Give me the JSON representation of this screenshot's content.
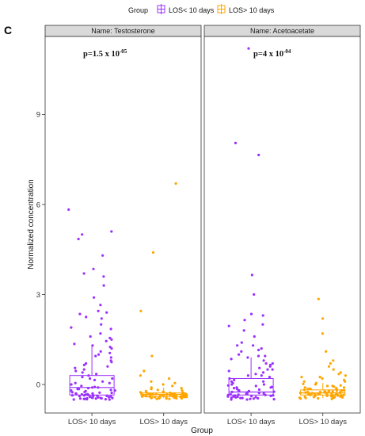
{
  "panel_label": "C",
  "legend": {
    "title": "Group",
    "entries": [
      "LOS< 10 days",
      "LOS> 10 days"
    ]
  },
  "colors": {
    "los_lt_10": "#9b30ff",
    "los_gt_10": "#ffa500",
    "strip_bg": "#d9d9d9"
  },
  "chart_data": {
    "type": "box-jitter",
    "xlabel": "Group",
    "ylabel": "Normalized concentration",
    "ylim": [
      -0.95,
      11.6
    ],
    "yticks": [
      0,
      3,
      6,
      9
    ],
    "categories": [
      "LOS< 10 days",
      "LOS> 10 days"
    ],
    "facets": [
      {
        "name": "Name: Testosterone",
        "pvalue_base": "p=1.5 x 10",
        "pvalue_exp": "-05",
        "boxes": [
          {
            "group": "LOS< 10 days",
            "min": -0.4,
            "q1": -0.35,
            "median": -0.1,
            "q3": 0.3,
            "max": 1.3
          },
          {
            "group": "LOS> 10 days",
            "min": -0.45,
            "q1": -0.4,
            "median": -0.33,
            "q3": -0.28,
            "max": -0.1
          }
        ],
        "points": [
          {
            "group": "LOS< 10 days",
            "values": [
              5.83,
              5.1,
              5.0,
              4.85,
              4.3,
              3.85,
              3.7,
              3.6,
              3.3,
              2.9,
              2.65,
              2.45,
              2.4,
              2.35,
              2.25,
              2.2,
              2.0,
              1.9,
              1.7,
              1.6,
              1.5,
              1.45,
              1.35,
              1.3,
              1.2,
              1.1,
              1.0,
              0.95,
              0.9,
              0.8,
              0.7,
              0.65,
              0.6,
              0.5,
              0.45,
              0.4,
              0.3,
              0.25,
              0.2,
              0.15,
              0.1,
              0.05,
              0.0,
              -0.05,
              -0.08,
              -0.1,
              -0.12,
              -0.15,
              -0.18,
              -0.2,
              -0.22,
              -0.25,
              -0.27,
              -0.28,
              -0.3,
              -0.31,
              -0.32,
              -0.33,
              -0.34,
              -0.35,
              -0.36,
              -0.37,
              -0.38,
              -0.39,
              -0.4,
              -0.41,
              -0.42,
              -0.42,
              -0.43,
              -0.44,
              -0.44,
              -0.45,
              -0.45,
              -0.46,
              -0.46,
              -0.47,
              -0.47,
              -0.48,
              -0.48,
              -0.49,
              -0.49,
              -0.5,
              -0.5,
              -0.38,
              -0.36,
              -0.34,
              -0.3,
              -0.26,
              -0.2,
              -0.15,
              -0.1,
              0.05,
              0.2,
              0.35,
              0.55,
              0.75,
              1.05,
              1.25,
              1.55,
              1.85
            ]
          },
          {
            "group": "LOS> 10 days",
            "values": [
              6.7,
              4.4,
              2.45,
              0.95,
              0.45,
              0.3,
              0.2,
              0.1,
              0.05,
              0.0,
              -0.05,
              -0.1,
              -0.12,
              -0.15,
              -0.18,
              -0.2,
              -0.22,
              -0.24,
              -0.26,
              -0.27,
              -0.28,
              -0.29,
              -0.3,
              -0.3,
              -0.31,
              -0.31,
              -0.32,
              -0.32,
              -0.33,
              -0.33,
              -0.34,
              -0.34,
              -0.35,
              -0.35,
              -0.36,
              -0.36,
              -0.37,
              -0.37,
              -0.38,
              -0.38,
              -0.39,
              -0.39,
              -0.4,
              -0.4,
              -0.4,
              -0.41,
              -0.41,
              -0.42,
              -0.42,
              -0.43,
              -0.43,
              -0.44,
              -0.44,
              -0.45,
              -0.45,
              -0.46,
              -0.46,
              -0.47,
              -0.48,
              -0.48,
              -0.3,
              -0.32,
              -0.35,
              -0.37,
              -0.4,
              -0.42,
              -0.38,
              -0.34,
              -0.36,
              -0.39,
              -0.41,
              -0.33,
              -0.29,
              -0.27,
              -0.25,
              -0.44,
              -0.46,
              -0.38,
              -0.35,
              -0.31
            ]
          }
        ]
      },
      {
        "name": "Name: Acetoacetate",
        "pvalue_base": "p=4 x 10",
        "pvalue_exp": "-04",
        "boxes": [
          {
            "group": "LOS< 10 days",
            "min": -0.4,
            "q1": -0.35,
            "median": -0.25,
            "q3": 0.2,
            "max": 0.9
          },
          {
            "group": "LOS> 10 days",
            "min": -0.45,
            "q1": -0.35,
            "median": -0.28,
            "q3": -0.18,
            "max": 0.05
          }
        ],
        "points": [
          {
            "group": "LOS< 10 days",
            "values": [
              11.2,
              8.05,
              7.65,
              3.65,
              3.0,
              2.35,
              2.3,
              2.15,
              2.0,
              1.95,
              1.4,
              1.3,
              1.3,
              1.2,
              1.1,
              1.0,
              0.95,
              0.9,
              0.85,
              0.8,
              0.7,
              0.65,
              0.6,
              0.55,
              0.5,
              0.45,
              0.4,
              0.35,
              0.3,
              0.25,
              0.2,
              0.15,
              0.1,
              0.05,
              0.0,
              -0.03,
              -0.05,
              -0.08,
              -0.1,
              -0.12,
              -0.15,
              -0.17,
              -0.2,
              -0.22,
              -0.24,
              -0.26,
              -0.28,
              -0.3,
              -0.31,
              -0.32,
              -0.33,
              -0.34,
              -0.35,
              -0.36,
              -0.37,
              -0.38,
              -0.39,
              -0.4,
              -0.41,
              -0.42,
              -0.43,
              -0.44,
              -0.45,
              -0.46,
              -0.47,
              -0.48,
              -0.49,
              -0.5,
              -0.5,
              -0.45,
              -0.4,
              -0.35,
              -0.3,
              -0.25,
              -0.2,
              -0.1,
              0.0,
              0.1,
              0.3,
              0.5,
              0.7,
              0.95,
              1.15,
              1.6,
              1.8
            ]
          },
          {
            "group": "LOS> 10 days",
            "values": [
              2.85,
              2.2,
              1.7,
              1.1,
              0.8,
              0.7,
              0.6,
              0.5,
              0.4,
              0.35,
              0.3,
              0.25,
              0.2,
              0.15,
              0.1,
              0.05,
              0.02,
              0.0,
              -0.03,
              -0.05,
              -0.07,
              -0.1,
              -0.12,
              -0.14,
              -0.15,
              -0.17,
              -0.18,
              -0.2,
              -0.21,
              -0.22,
              -0.23,
              -0.24,
              -0.25,
              -0.26,
              -0.27,
              -0.28,
              -0.29,
              -0.3,
              -0.31,
              -0.32,
              -0.33,
              -0.34,
              -0.35,
              -0.36,
              -0.37,
              -0.38,
              -0.39,
              -0.4,
              -0.41,
              -0.42,
              -0.43,
              -0.44,
              -0.45,
              -0.46,
              -0.47,
              -0.48,
              -0.2,
              -0.25,
              -0.3,
              -0.35,
              -0.4,
              -0.15,
              -0.1,
              -0.22,
              -0.28,
              -0.33,
              -0.38,
              -0.42,
              -0.27,
              -0.31,
              -0.36,
              -0.19,
              -0.24,
              -0.29,
              -0.34,
              -0.39,
              -0.44,
              -0.05,
              0.1,
              0.25
            ]
          }
        ]
      }
    ]
  }
}
